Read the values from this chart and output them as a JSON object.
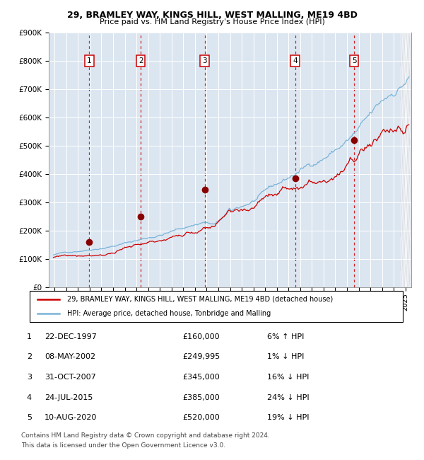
{
  "title1": "29, BRAMLEY WAY, KINGS HILL, WEST MALLING, ME19 4BD",
  "title2": "Price paid vs. HM Land Registry's House Price Index (HPI)",
  "background_color": "#dce6f1",
  "hpi_color": "#7ab4d8",
  "price_color": "#cc0000",
  "sale_marker_color": "#880000",
  "dashed_line_color": "#cc0000",
  "sales": [
    {
      "num": 1,
      "date_x": 1997.97,
      "price": 160000,
      "label": "22-DEC-1997",
      "hpi_rel": "6% ↑ HPI"
    },
    {
      "num": 2,
      "date_x": 2002.36,
      "price": 249995,
      "label": "08-MAY-2002",
      "hpi_rel": "1% ↓ HPI"
    },
    {
      "num": 3,
      "date_x": 2007.83,
      "price": 345000,
      "label": "31-OCT-2007",
      "hpi_rel": "16% ↓ HPI"
    },
    {
      "num": 4,
      "date_x": 2015.56,
      "price": 385000,
      "label": "24-JUL-2015",
      "hpi_rel": "24% ↓ HPI"
    },
    {
      "num": 5,
      "date_x": 2020.61,
      "price": 520000,
      "label": "10-AUG-2020",
      "hpi_rel": "19% ↓ HPI"
    }
  ],
  "legend_line1": "29, BRAMLEY WAY, KINGS HILL, WEST MALLING, ME19 4BD (detached house)",
  "legend_line2": "HPI: Average price, detached house, Tonbridge and Malling",
  "footer1": "Contains HM Land Registry data © Crown copyright and database right 2024.",
  "footer2": "This data is licensed under the Open Government Licence v3.0.",
  "ylim": [
    0,
    900000
  ],
  "xlim": [
    1994.5,
    2025.5
  ],
  "yticks": [
    0,
    100000,
    200000,
    300000,
    400000,
    500000,
    600000,
    700000,
    800000,
    900000
  ]
}
